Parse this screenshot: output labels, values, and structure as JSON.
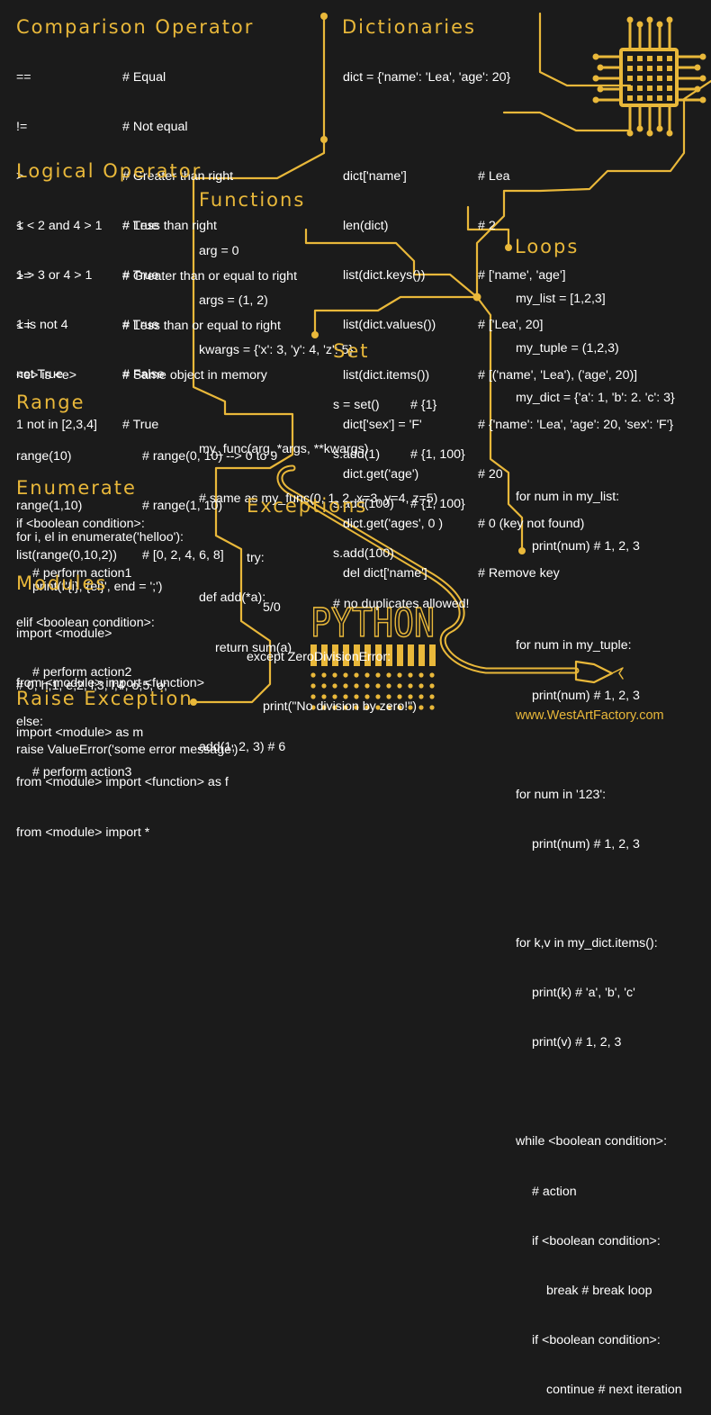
{
  "comparison": {
    "title": "Comparison Operator",
    "rows": [
      {
        "code": "==",
        "comment": "# Equal"
      },
      {
        "code": "!=",
        "comment": "# Not equal"
      },
      {
        "code": ">",
        "comment": "# Greater than right"
      },
      {
        "code": "<",
        "comment": "# Less than right"
      },
      {
        "code": ">=",
        "comment": "# Greater than or equal to right"
      },
      {
        "code": "<=",
        "comment": "# Less than or equal to right"
      },
      {
        "code": "<e> is <e>",
        "comment": "# Same object in memory"
      }
    ]
  },
  "logical": {
    "title": "Logical Operator",
    "rows": [
      {
        "code": "1 < 2 and 4 > 1",
        "comment": "# True"
      },
      {
        "code": "1 > 3 or 4 > 1",
        "comment": "# True"
      },
      {
        "code": "1 is not 4",
        "comment": "# True"
      },
      {
        "code": "not True",
        "comment": "# False"
      },
      {
        "code": "1 not in [2,3,4]",
        "comment": "# True"
      }
    ],
    "if_lines": [
      "if <boolean condition>:",
      "# perform action1",
      "elif <boolean condition>:",
      "# perform action2",
      "else:",
      "# perform action3"
    ]
  },
  "range": {
    "title": "Range",
    "rows": [
      {
        "code": "range(10)",
        "comment": "# range(0, 10) --> 0 to 9"
      },
      {
        "code": "range(1,10)",
        "comment": "# range(1, 10)"
      },
      {
        "code": "list(range(0,10,2))",
        "comment": "# [0, 2, 4, 6, 8]"
      }
    ]
  },
  "enumerate": {
    "title": "Enumerate",
    "lines": [
      "for i, el in enumerate('helloo'):",
      "print(f'{i}, {el}', end = ';')",
      "# 0, h;1, e;2, l;3, l;4, o;5, o;"
    ]
  },
  "modules": {
    "title": "Modules",
    "lines": [
      "import <module>",
      "from <module> import <function>",
      "import <module> as m",
      "from <module> import <function> as f",
      "from <module> import *"
    ]
  },
  "raise": {
    "title": "Raise Exception",
    "line": "raise ValueError('some error message')"
  },
  "dictionaries": {
    "title": "Dictionaries",
    "assign": "dict = {'name': 'Lea', 'age': 20}",
    "rows": [
      {
        "code": "dict['name']",
        "comment": "# Lea"
      },
      {
        "code": "len(dict)",
        "comment": "# 2"
      },
      {
        "code": "list(dict.keys())",
        "comment": "# ['name', 'age']"
      },
      {
        "code": "list(dict.values())",
        "comment": "# ['Lea', 20]"
      },
      {
        "code": "list(dict.items())",
        "comment": "# [('name', 'Lea'), ('age', 20)]"
      },
      {
        "code": "dict['sex'] = 'F'",
        "comment": "# {'name': 'Lea', 'age': 20, 'sex': 'F'}"
      },
      {
        "code": "dict.get('age')",
        "comment": "# 20"
      },
      {
        "code": "dict.get('ages', 0 )",
        "comment": "# 0 (key not found)"
      },
      {
        "code": "del dict['name']",
        "comment": "# Remove key"
      }
    ]
  },
  "functions": {
    "title": "Functions",
    "lines": [
      "arg = 0",
      "args = (1, 2)",
      "kwargs = {'x': 3, 'y': 4, 'z': 5}"
    ],
    "call_lines": [
      "my_func(arg, *args, **kwargs)",
      "# same as my_func(0, 1, 2, x=3, y=4, z=5)"
    ],
    "def_lines": [
      "def add(*a):",
      "return sum(a)"
    ],
    "add_line": "add(1, 2, 3) # 6"
  },
  "set": {
    "title": "Set",
    "rows": [
      {
        "code": "s = set()",
        "comment": "# {1}"
      },
      {
        "code": "s.add(1)",
        "comment": "# {1, 100}"
      },
      {
        "code": "s.add(100)",
        "comment": "# {1, 100}"
      },
      {
        "code": "s.add(100)",
        "comment": ""
      }
    ],
    "note": "# no duplicates allowed!"
  },
  "exceptions": {
    "title": "Exceptions",
    "lines": [
      "try:",
      "5/0",
      "except ZeroDivisionError:",
      "print(\"No division by zero!\")"
    ]
  },
  "loops": {
    "title": "Loops",
    "decl": [
      "my_list = [1,2,3]",
      "my_tuple = (1,2,3)",
      "my_dict = {'a': 1, 'b': 2. 'c': 3}"
    ],
    "for_list": [
      "for num in my_list:",
      "print(num) # 1, 2, 3"
    ],
    "for_tuple": [
      "for num in my_tuple:",
      "print(num) # 1, 2, 3"
    ],
    "for_str": [
      "for num in '123':",
      "print(num) # 1, 2, 3"
    ],
    "for_items": [
      "for k,v in my_dict.items():",
      "print(k) # 'a', 'b', 'c'",
      "print(v) # 1, 2, 3"
    ],
    "while_lines": [
      "while <boolean condition>:",
      "# action",
      "if <boolean condition>:",
      "break # break loop",
      "if <boolean condition>:",
      "continue # next iteration"
    ]
  },
  "logo": {
    "text": "PYTHON"
  },
  "footer": {
    "url": "www.WestArtFactory.com"
  },
  "colors": {
    "background": "#1b1b1b",
    "accent": "#e9b83a",
    "text": "#ffffff"
  }
}
